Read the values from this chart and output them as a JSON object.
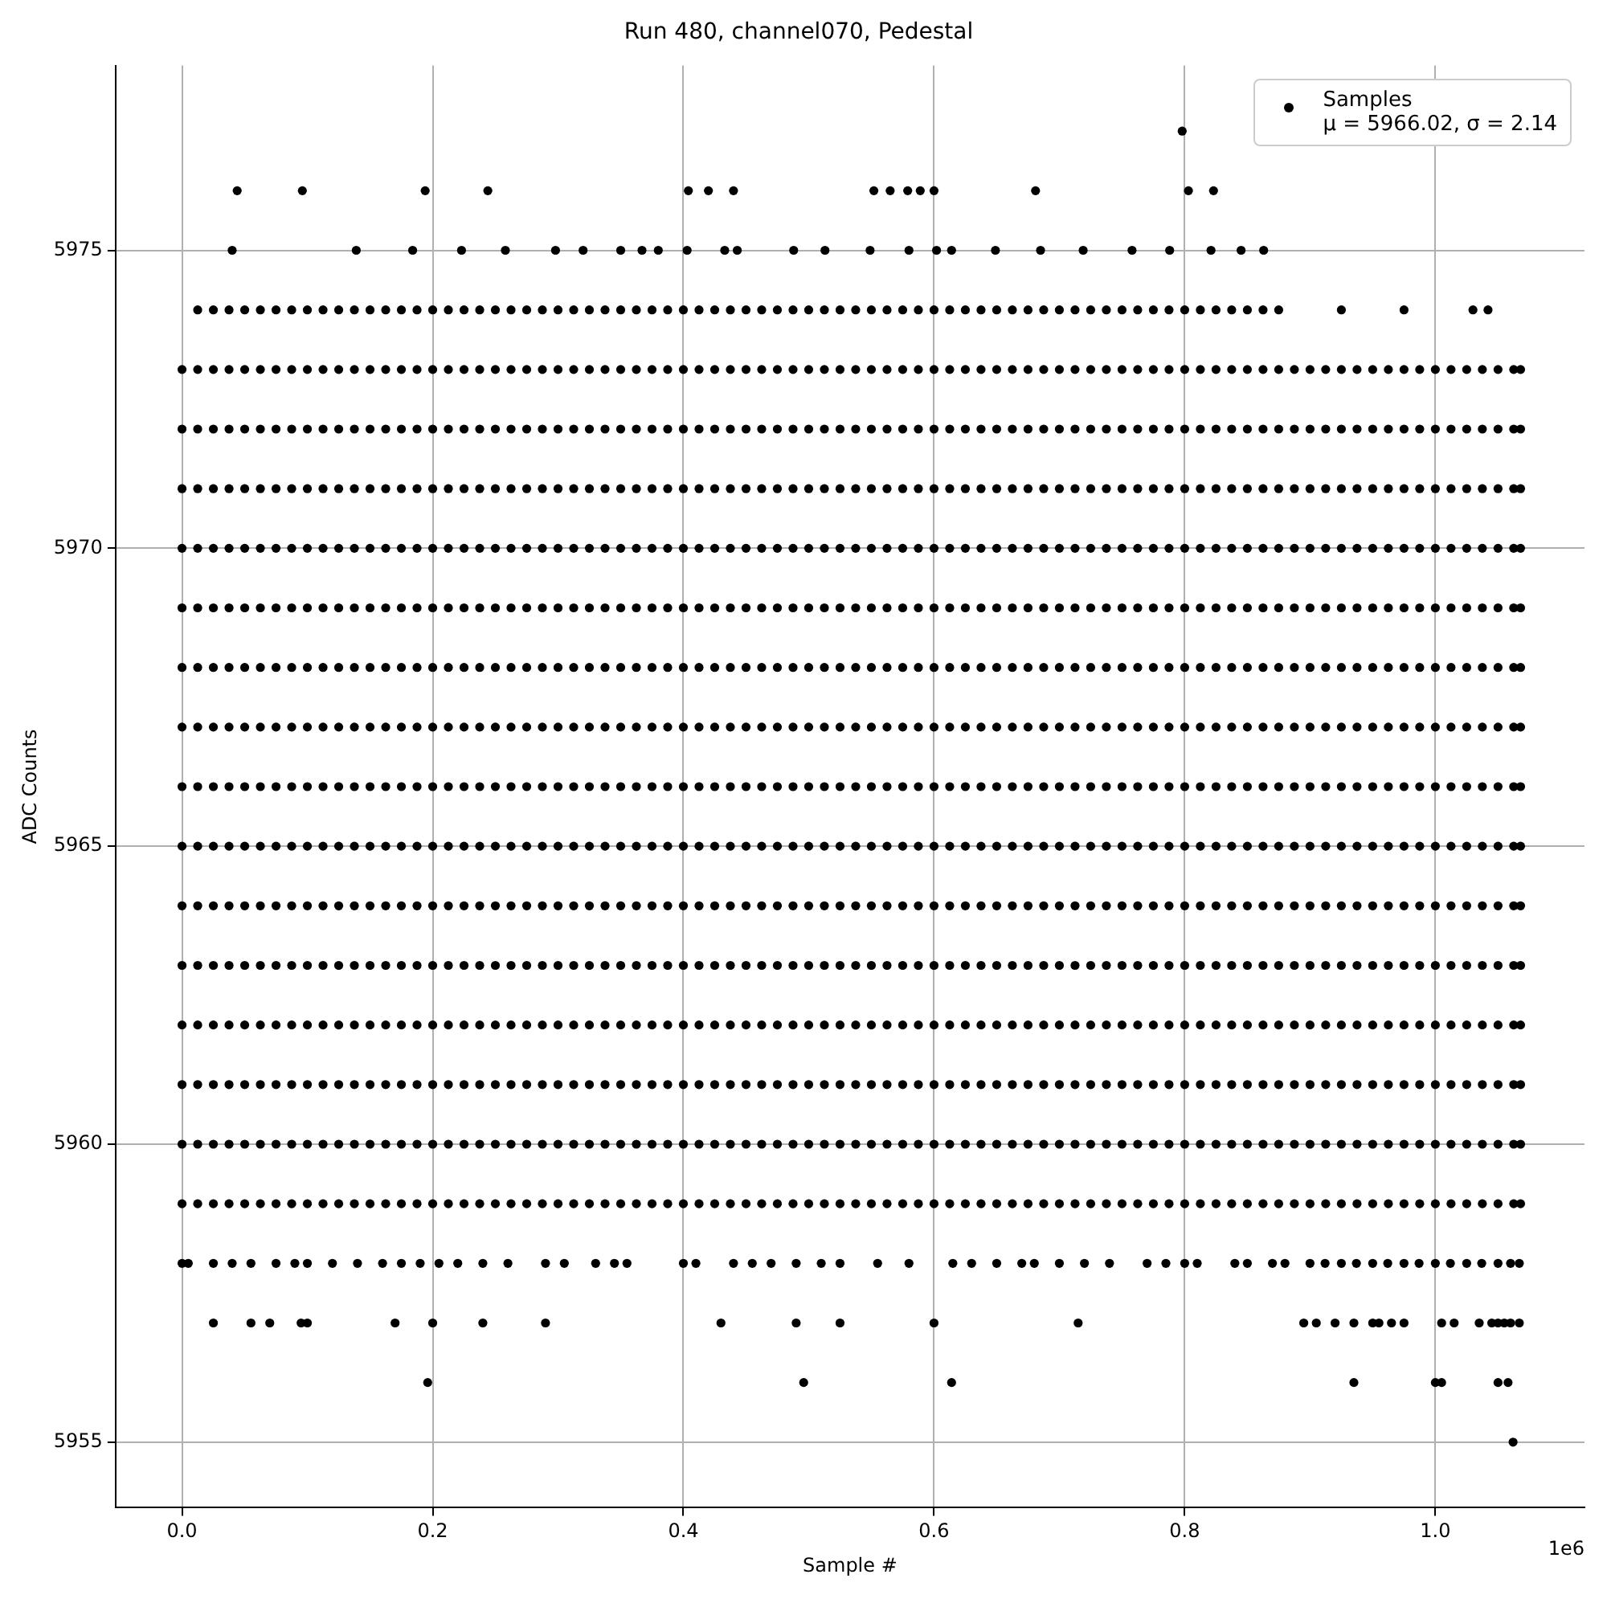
{
  "chart_data": {
    "type": "scatter",
    "title": "Run 480, channel070, Pedestal",
    "xlabel": "Sample #",
    "ylabel": "ADC Counts",
    "xlim": [
      -0.053,
      1.119
    ],
    "ylim": [
      5953.9,
      5978.1
    ],
    "xticks": [
      {
        "value": 0,
        "label": "0.0"
      },
      0.2,
      0.4,
      0.6,
      0.8,
      {
        "value": 1,
        "label": "1.0"
      }
    ],
    "yticks": [
      5955,
      5960,
      5965,
      5970,
      5975
    ],
    "grid": true,
    "legend": "top right",
    "marker": "circle",
    "annotations": [
      "1e6"
    ],
    "x": [
      0,
      0.0125,
      0.025,
      0.0375,
      0.05,
      0.0625,
      0.075,
      0.0875,
      0.1,
      0.1125,
      0.125,
      0.1375,
      0.15,
      0.1625,
      0.175,
      0.1875,
      0.2,
      0.2125,
      0.225,
      0.2375,
      0.25,
      0.2625,
      0.275,
      0.2875,
      0.3,
      0.3125,
      0.325,
      0.3375,
      0.35,
      0.3625,
      0.375,
      0.3875,
      0.4,
      0.4125,
      0.425,
      0.4375,
      0.45,
      0.4625,
      0.475,
      0.4875,
      0.5,
      0.5125,
      0.525,
      0.5375,
      0.55,
      0.5625,
      0.575,
      0.5875,
      0.6,
      0.6125,
      0.625,
      0.6375,
      0.65,
      0.6625,
      0.675,
      0.6875,
      0.7,
      0.7125,
      0.725,
      0.7375,
      0.75,
      0.7625,
      0.775,
      0.7875,
      0.8,
      0.8125,
      0.825,
      0.8375,
      0.85,
      0.8625,
      0.875,
      0.8875,
      0.9,
      0.9125,
      0.925,
      0.9375,
      0.95,
      0.9625,
      0.975,
      0.9875,
      1.0,
      1.0125,
      1.025,
      1.0375,
      1.05,
      1.0625,
      1.068
    ],
    "series": [
      {
        "name": "Samples\nμ = 5966.02, σ = 2.14",
        "color": "#000000",
        "values": [
          5966,
          5966,
          5966,
          5966,
          5966,
          5966,
          5966,
          5966,
          5966,
          5966,
          5966,
          5966,
          5966,
          5966,
          5966,
          5966,
          5966,
          5966,
          5966,
          5966,
          5966,
          5966,
          5966,
          5966,
          5966,
          5966,
          5966,
          5966,
          5966,
          5966,
          5966,
          5966,
          5966,
          5966,
          5966,
          5966,
          5966,
          5966,
          5966,
          5966,
          5966,
          5966,
          5966,
          5966,
          5966,
          5966,
          5966,
          5966,
          5966,
          5966,
          5966,
          5966,
          5966,
          5966,
          5966,
          5966,
          5966,
          5966,
          5966,
          5966,
          5966,
          5966,
          5966,
          5966,
          5966,
          5966,
          5966,
          5966,
          5966,
          5966,
          5966,
          5966,
          5966,
          5966,
          5966,
          5966,
          5966,
          5966,
          5966,
          5966,
          5966,
          5966,
          5966,
          5966,
          5966,
          5966,
          5966
        ]
      },
      {
        "color": "#000000",
        "values": [
          5959,
          5959,
          5959,
          5959,
          5959,
          5959,
          5959,
          5959,
          5959,
          5959,
          5959,
          5959,
          5959,
          5959,
          5959,
          5959,
          5959,
          5959,
          5959,
          5959,
          5959,
          5959,
          5959,
          5959,
          5959,
          5959,
          5959,
          5959,
          5959,
          5959,
          5959,
          5959,
          5959,
          5959,
          5959,
          5959,
          5959,
          5959,
          5959,
          5959,
          5959,
          5959,
          5959,
          5959,
          5959,
          5959,
          5959,
          5959,
          5959,
          5959,
          5959,
          5959,
          5959,
          5959,
          5959,
          5959,
          5959,
          5959,
          5959,
          5959,
          5959,
          5959,
          5959,
          5959,
          5959,
          5959,
          5959,
          5959,
          5959,
          5959,
          5959,
          5959,
          5959,
          5959,
          5959,
          5959,
          5959,
          5959,
          5959,
          5959,
          5959,
          5959,
          5959,
          5959,
          5959,
          5959,
          5959
        ]
      },
      {
        "color": "#000000",
        "values": [
          5960,
          5960,
          5960,
          5960,
          5960,
          5960,
          5960,
          5960,
          5960,
          5960,
          5960,
          5960,
          5960,
          5960,
          5960,
          5960,
          5960,
          5960,
          5960,
          5960,
          5960,
          5960,
          5960,
          5960,
          5960,
          5960,
          5960,
          5960,
          5960,
          5960,
          5960,
          5960,
          5960,
          5960,
          5960,
          5960,
          5960,
          5960,
          5960,
          5960,
          5960,
          5960,
          5960,
          5960,
          5960,
          5960,
          5960,
          5960,
          5960,
          5960,
          5960,
          5960,
          5960,
          5960,
          5960,
          5960,
          5960,
          5960,
          5960,
          5960,
          5960,
          5960,
          5960,
          5960,
          5960,
          5960,
          5960,
          5960,
          5960,
          5960,
          5960,
          5960,
          5960,
          5960,
          5960,
          5960,
          5960,
          5960,
          5960,
          5960,
          5960,
          5960,
          5960,
          5960,
          5960,
          5960,
          5960
        ]
      },
      {
        "color": "#000000",
        "values": [
          5961,
          5961,
          5961,
          5961,
          5961,
          5961,
          5961,
          5961,
          5961,
          5961,
          5961,
          5961,
          5961,
          5961,
          5961,
          5961,
          5961,
          5961,
          5961,
          5961,
          5961,
          5961,
          5961,
          5961,
          5961,
          5961,
          5961,
          5961,
          5961,
          5961,
          5961,
          5961,
          5961,
          5961,
          5961,
          5961,
          5961,
          5961,
          5961,
          5961,
          5961,
          5961,
          5961,
          5961,
          5961,
          5961,
          5961,
          5961,
          5961,
          5961,
          5961,
          5961,
          5961,
          5961,
          5961,
          5961,
          5961,
          5961,
          5961,
          5961,
          5961,
          5961,
          5961,
          5961,
          5961,
          5961,
          5961,
          5961,
          5961,
          5961,
          5961,
          5961,
          5961,
          5961,
          5961,
          5961,
          5961,
          5961,
          5961,
          5961,
          5961,
          5961,
          5961,
          5961,
          5961,
          5961,
          5961
        ]
      },
      {
        "color": "#000000",
        "values": [
          5962,
          5962,
          5962,
          5962,
          5962,
          5962,
          5962,
          5962,
          5962,
          5962,
          5962,
          5962,
          5962,
          5962,
          5962,
          5962,
          5962,
          5962,
          5962,
          5962,
          5962,
          5962,
          5962,
          5962,
          5962,
          5962,
          5962,
          5962,
          5962,
          5962,
          5962,
          5962,
          5962,
          5962,
          5962,
          5962,
          5962,
          5962,
          5962,
          5962,
          5962,
          5962,
          5962,
          5962,
          5962,
          5962,
          5962,
          5962,
          5962,
          5962,
          5962,
          5962,
          5962,
          5962,
          5962,
          5962,
          5962,
          5962,
          5962,
          5962,
          5962,
          5962,
          5962,
          5962,
          5962,
          5962,
          5962,
          5962,
          5962,
          5962,
          5962,
          5962,
          5962,
          5962,
          5962,
          5962,
          5962,
          5962,
          5962,
          5962,
          5962,
          5962,
          5962,
          5962,
          5962,
          5962,
          5962
        ]
      },
      {
        "color": "#000000",
        "values": [
          5963,
          5963,
          5963,
          5963,
          5963,
          5963,
          5963,
          5963,
          5963,
          5963,
          5963,
          5963,
          5963,
          5963,
          5963,
          5963,
          5963,
          5963,
          5963,
          5963,
          5963,
          5963,
          5963,
          5963,
          5963,
          5963,
          5963,
          5963,
          5963,
          5963,
          5963,
          5963,
          5963,
          5963,
          5963,
          5963,
          5963,
          5963,
          5963,
          5963,
          5963,
          5963,
          5963,
          5963,
          5963,
          5963,
          5963,
          5963,
          5963,
          5963,
          5963,
          5963,
          5963,
          5963,
          5963,
          5963,
          5963,
          5963,
          5963,
          5963,
          5963,
          5963,
          5963,
          5963,
          5963,
          5963,
          5963,
          5963,
          5963,
          5963,
          5963,
          5963,
          5963,
          5963,
          5963,
          5963,
          5963,
          5963,
          5963,
          5963,
          5963,
          5963,
          5963,
          5963,
          5963,
          5963,
          5963
        ]
      },
      {
        "color": "#000000",
        "values": [
          5964,
          5964,
          5964,
          5964,
          5964,
          5964,
          5964,
          5964,
          5964,
          5964,
          5964,
          5964,
          5964,
          5964,
          5964,
          5964,
          5964,
          5964,
          5964,
          5964,
          5964,
          5964,
          5964,
          5964,
          5964,
          5964,
          5964,
          5964,
          5964,
          5964,
          5964,
          5964,
          5964,
          5964,
          5964,
          5964,
          5964,
          5964,
          5964,
          5964,
          5964,
          5964,
          5964,
          5964,
          5964,
          5964,
          5964,
          5964,
          5964,
          5964,
          5964,
          5964,
          5964,
          5964,
          5964,
          5964,
          5964,
          5964,
          5964,
          5964,
          5964,
          5964,
          5964,
          5964,
          5964,
          5964,
          5964,
          5964,
          5964,
          5964,
          5964,
          5964,
          5964,
          5964,
          5964,
          5964,
          5964,
          5964,
          5964,
          5964,
          5964,
          5964,
          5964,
          5964,
          5964,
          5964,
          5964
        ]
      },
      {
        "color": "#000000",
        "values": [
          5965,
          5965,
          5965,
          5965,
          5965,
          5965,
          5965,
          5965,
          5965,
          5965,
          5965,
          5965,
          5965,
          5965,
          5965,
          5965,
          5965,
          5965,
          5965,
          5965,
          5965,
          5965,
          5965,
          5965,
          5965,
          5965,
          5965,
          5965,
          5965,
          5965,
          5965,
          5965,
          5965,
          5965,
          5965,
          5965,
          5965,
          5965,
          5965,
          5965,
          5965,
          5965,
          5965,
          5965,
          5965,
          5965,
          5965,
          5965,
          5965,
          5965,
          5965,
          5965,
          5965,
          5965,
          5965,
          5965,
          5965,
          5965,
          5965,
          5965,
          5965,
          5965,
          5965,
          5965,
          5965,
          5965,
          5965,
          5965,
          5965,
          5965,
          5965,
          5965,
          5965,
          5965,
          5965,
          5965,
          5965,
          5965,
          5965,
          5965,
          5965,
          5965,
          5965,
          5965,
          5965,
          5965,
          5965
        ]
      },
      {
        "color": "#000000",
        "values": [
          5967,
          5967,
          5967,
          5967,
          5967,
          5967,
          5967,
          5967,
          5967,
          5967,
          5967,
          5967,
          5967,
          5967,
          5967,
          5967,
          5967,
          5967,
          5967,
          5967,
          5967,
          5967,
          5967,
          5967,
          5967,
          5967,
          5967,
          5967,
          5967,
          5967,
          5967,
          5967,
          5967,
          5967,
          5967,
          5967,
          5967,
          5967,
          5967,
          5967,
          5967,
          5967,
          5967,
          5967,
          5967,
          5967,
          5967,
          5967,
          5967,
          5967,
          5967,
          5967,
          5967,
          5967,
          5967,
          5967,
          5967,
          5967,
          5967,
          5967,
          5967,
          5967,
          5967,
          5967,
          5967,
          5967,
          5967,
          5967,
          5967,
          5967,
          5967,
          5967,
          5967,
          5967,
          5967,
          5967,
          5967,
          5967,
          5967,
          5967,
          5967,
          5967,
          5967,
          5967,
          5967,
          5967,
          5967
        ]
      },
      {
        "color": "#000000",
        "values": [
          5968,
          5968,
          5968,
          5968,
          5968,
          5968,
          5968,
          5968,
          5968,
          5968,
          5968,
          5968,
          5968,
          5968,
          5968,
          5968,
          5968,
          5968,
          5968,
          5968,
          5968,
          5968,
          5968,
          5968,
          5968,
          5968,
          5968,
          5968,
          5968,
          5968,
          5968,
          5968,
          5968,
          5968,
          5968,
          5968,
          5968,
          5968,
          5968,
          5968,
          5968,
          5968,
          5968,
          5968,
          5968,
          5968,
          5968,
          5968,
          5968,
          5968,
          5968,
          5968,
          5968,
          5968,
          5968,
          5968,
          5968,
          5968,
          5968,
          5968,
          5968,
          5968,
          5968,
          5968,
          5968,
          5968,
          5968,
          5968,
          5968,
          5968,
          5968,
          5968,
          5968,
          5968,
          5968,
          5968,
          5968,
          5968,
          5968,
          5968,
          5968,
          5968,
          5968,
          5968,
          5968,
          5968,
          5968
        ]
      },
      {
        "color": "#000000",
        "values": [
          5969,
          5969,
          5969,
          5969,
          5969,
          5969,
          5969,
          5969,
          5969,
          5969,
          5969,
          5969,
          5969,
          5969,
          5969,
          5969,
          5969,
          5969,
          5969,
          5969,
          5969,
          5969,
          5969,
          5969,
          5969,
          5969,
          5969,
          5969,
          5969,
          5969,
          5969,
          5969,
          5969,
          5969,
          5969,
          5969,
          5969,
          5969,
          5969,
          5969,
          5969,
          5969,
          5969,
          5969,
          5969,
          5969,
          5969,
          5969,
          5969,
          5969,
          5969,
          5969,
          5969,
          5969,
          5969,
          5969,
          5969,
          5969,
          5969,
          5969,
          5969,
          5969,
          5969,
          5969,
          5969,
          5969,
          5969,
          5969,
          5969,
          5969,
          5969,
          5969,
          5969,
          5969,
          5969,
          5969,
          5969,
          5969,
          5969,
          5969,
          5969,
          5969,
          5969,
          5969,
          5969,
          5969,
          5969
        ]
      },
      {
        "color": "#000000",
        "values": [
          5970,
          5970,
          5970,
          5970,
          5970,
          5970,
          5970,
          5970,
          5970,
          5970,
          5970,
          5970,
          5970,
          5970,
          5970,
          5970,
          5970,
          5970,
          5970,
          5970,
          5970,
          5970,
          5970,
          5970,
          5970,
          5970,
          5970,
          5970,
          5970,
          5970,
          5970,
          5970,
          5970,
          5970,
          5970,
          5970,
          5970,
          5970,
          5970,
          5970,
          5970,
          5970,
          5970,
          5970,
          5970,
          5970,
          5970,
          5970,
          5970,
          5970,
          5970,
          5970,
          5970,
          5970,
          5970,
          5970,
          5970,
          5970,
          5970,
          5970,
          5970,
          5970,
          5970,
          5970,
          5970,
          5970,
          5970,
          5970,
          5970,
          5970,
          5970,
          5970,
          5970,
          5970,
          5970,
          5970,
          5970,
          5970,
          5970,
          5970,
          5970,
          5970,
          5970,
          5970,
          5970,
          5970,
          5970
        ]
      },
      {
        "color": "#000000",
        "values": [
          5971,
          5971,
          5971,
          5971,
          5971,
          5971,
          5971,
          5971,
          5971,
          5971,
          5971,
          5971,
          5971,
          5971,
          5971,
          5971,
          5971,
          5971,
          5971,
          5971,
          5971,
          5971,
          5971,
          5971,
          5971,
          5971,
          5971,
          5971,
          5971,
          5971,
          5971,
          5971,
          5971,
          5971,
          5971,
          5971,
          5971,
          5971,
          5971,
          5971,
          5971,
          5971,
          5971,
          5971,
          5971,
          5971,
          5971,
          5971,
          5971,
          5971,
          5971,
          5971,
          5971,
          5971,
          5971,
          5971,
          5971,
          5971,
          5971,
          5971,
          5971,
          5971,
          5971,
          5971,
          5971,
          5971,
          5971,
          5971,
          5971,
          5971,
          5971,
          5971,
          5971,
          5971,
          5971,
          5971,
          5971,
          5971,
          5971,
          5971,
          5971,
          5971,
          5971,
          5971,
          5971,
          5971,
          5971
        ]
      },
      {
        "color": "#000000",
        "values": [
          5972,
          5972,
          5972,
          5972,
          5972,
          5972,
          5972,
          5972,
          5972,
          5972,
          5972,
          5972,
          5972,
          5972,
          5972,
          5972,
          5972,
          5972,
          5972,
          5972,
          5972,
          5972,
          5972,
          5972,
          5972,
          5972,
          5972,
          5972,
          5972,
          5972,
          5972,
          5972,
          5972,
          5972,
          5972,
          5972,
          5972,
          5972,
          5972,
          5972,
          5972,
          5972,
          5972,
          5972,
          5972,
          5972,
          5972,
          5972,
          5972,
          5972,
          5972,
          5972,
          5972,
          5972,
          5972,
          5972,
          5972,
          5972,
          5972,
          5972,
          5972,
          5972,
          5972,
          5972,
          5972,
          5972,
          5972,
          5972,
          5972,
          5972,
          5972,
          5972,
          5972,
          5972,
          5972,
          5972,
          5972,
          5972,
          5972,
          5972,
          5972,
          5972,
          5972,
          5972,
          5972,
          5972,
          5972
        ]
      },
      {
        "color": "#000000",
        "values": [
          5973,
          5973,
          5973,
          5973,
          5973,
          5973,
          5973,
          5973,
          5973,
          5973,
          5973,
          5973,
          5973,
          5973,
          5973,
          5973,
          5973,
          5973,
          5973,
          5973,
          5973,
          5973,
          5973,
          5973,
          5973,
          5973,
          5973,
          5973,
          5973,
          5973,
          5973,
          5973,
          5973,
          5973,
          5973,
          5973,
          5973,
          5973,
          5973,
          5973,
          5973,
          5973,
          5973,
          5973,
          5973,
          5973,
          5973,
          5973,
          5973,
          5973,
          5973,
          5973,
          5973,
          5973,
          5973,
          5973,
          5973,
          5973,
          5973,
          5973,
          5973,
          5973,
          5973,
          5973,
          5973,
          5973,
          5973,
          5973,
          5973,
          5973,
          5973,
          5973,
          5973,
          5973,
          5973,
          5973,
          5973,
          5973,
          5973,
          5973,
          5973,
          5973,
          5973,
          5973,
          5973,
          5973,
          5973
        ]
      },
      {
        "color": "#000000",
        "values": [
          null,
          5974,
          5974,
          5974,
          5974,
          5974,
          5974,
          5974,
          5974,
          5974,
          5974,
          5974,
          5974,
          5974,
          5974,
          5974,
          5974,
          5974,
          5974,
          5974,
          5974,
          5974,
          5974,
          5974,
          5974,
          5974,
          5974,
          5974,
          5974,
          5974,
          5974,
          5974,
          5974,
          5974,
          5974,
          5974,
          5974,
          5974,
          5974,
          5974,
          5974,
          5974,
          5974,
          5974,
          5974,
          5974,
          5974,
          5974,
          5974,
          5974,
          5974,
          5974,
          5974,
          5974,
          5974,
          5974,
          5974,
          5974,
          5974,
          5974,
          5974,
          5974,
          5974,
          5974,
          5974,
          5974,
          5974,
          5974,
          5974,
          5974,
          5974,
          null,
          null,
          null,
          null,
          null,
          null,
          null,
          null,
          null,
          null,
          null,
          null,
          null,
          null,
          null,
          null
        ]
      },
      {
        "color": "#000000",
        "x": [
          0.925,
          0.975,
          1.03,
          1.042,
          0.798,
          0.044,
          0.096,
          0.194,
          0.244,
          0.404,
          0.42,
          0.44,
          0.552,
          0.565,
          0.579,
          0.589,
          0.6,
          0.681,
          0.803,
          0.823,
          0.04,
          0.139,
          0.184,
          0.223,
          0.258,
          0.298,
          0.32,
          0.35,
          0.367,
          0.38,
          0.403,
          0.433,
          0.443,
          0.488,
          0.513,
          0.549,
          0.58,
          0.602,
          0.614,
          0.649,
          0.685,
          0.719,
          0.758,
          0.788,
          0.821,
          0.845,
          0.863,
          0.196,
          0.496,
          0.614,
          0.935,
          1.0,
          1.005,
          1.05,
          1.058,
          1.062
        ],
        "values": [
          5974,
          5974,
          5974,
          5974,
          5977,
          5976,
          5976,
          5976,
          5976,
          5976,
          5976,
          5976,
          5976,
          5976,
          5976,
          5976,
          5976,
          5976,
          5976,
          5976,
          5975,
          5975,
          5975,
          5975,
          5975,
          5975,
          5975,
          5975,
          5975,
          5975,
          5975,
          5975,
          5975,
          5975,
          5975,
          5975,
          5975,
          5975,
          5975,
          5975,
          5975,
          5975,
          5975,
          5975,
          5975,
          5975,
          5975,
          5956,
          5956,
          5956,
          5956,
          5956,
          5956,
          5956,
          5956,
          5955
        ]
      },
      {
        "color": "#000000",
        "x": [
          0,
          0.005,
          0.025,
          0.04,
          0.055,
          0.075,
          0.09,
          0.1,
          0.12,
          0.14,
          0.16,
          0.175,
          0.19,
          0.205,
          0.22,
          0.24,
          0.26,
          0.29,
          0.305,
          0.33,
          0.345,
          0.355,
          0.4,
          0.41,
          0.44,
          0.455,
          0.47,
          0.49,
          0.51,
          0.525,
          0.555,
          0.58,
          0.615,
          0.63,
          0.65,
          0.67,
          0.68,
          0.7,
          0.72,
          0.74,
          0.77,
          0.785,
          0.8,
          0.81,
          0.84,
          0.85,
          0.87,
          0.88,
          0.9,
          0.912,
          0.925,
          0.937,
          0.95,
          0.962,
          0.975,
          0.987,
          1.0,
          1.012,
          1.025,
          1.037,
          1.05,
          1.06,
          1.067
        ],
        "values": [
          5958,
          5958,
          5958,
          5958,
          5958,
          5958,
          5958,
          5958,
          5958,
          5958,
          5958,
          5958,
          5958,
          5958,
          5958,
          5958,
          5958,
          5958,
          5958,
          5958,
          5958,
          5958,
          5958,
          5958,
          5958,
          5958,
          5958,
          5958,
          5958,
          5958,
          5958,
          5958,
          5958,
          5958,
          5958,
          5958,
          5958,
          5958,
          5958,
          5958,
          5958,
          5958,
          5958,
          5958,
          5958,
          5958,
          5958,
          5958,
          5958,
          5958,
          5958,
          5958,
          5958,
          5958,
          5958,
          5958,
          5958,
          5958,
          5958,
          5958,
          5958,
          5958,
          5958
        ]
      },
      {
        "color": "#000000",
        "x": [
          0.025,
          0.055,
          0.07,
          0.095,
          0.1,
          0.17,
          0.2,
          0.24,
          0.29,
          0.43,
          0.49,
          0.525,
          0.6,
          0.715,
          0.895,
          0.905,
          0.92,
          0.935,
          0.95,
          0.955,
          0.965,
          0.975,
          1.005,
          1.015,
          1.035,
          1.045,
          1.05,
          1.055,
          1.06,
          1.067
        ],
        "values": [
          5957,
          5957,
          5957,
          5957,
          5957,
          5957,
          5957,
          5957,
          5957,
          5957,
          5957,
          5957,
          5957,
          5957,
          5957,
          5957,
          5957,
          5957,
          5957,
          5957,
          5957,
          5957,
          5957,
          5957,
          5957,
          5957,
          5957,
          5957,
          5957,
          5957
        ]
      }
    ]
  }
}
